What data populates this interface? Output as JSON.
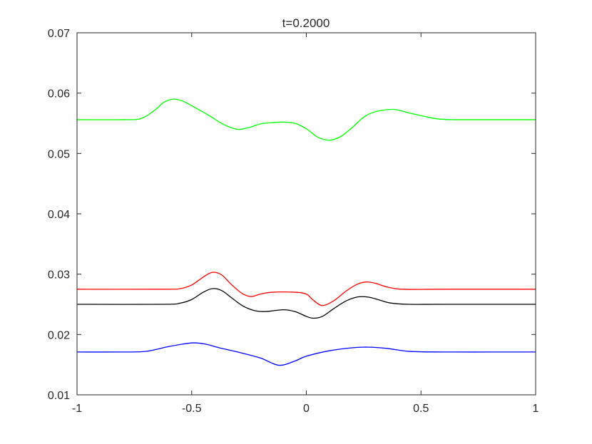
{
  "chart_data": {
    "type": "line",
    "title": "t=0.2000",
    "xlabel": "",
    "ylabel": "",
    "xlim": [
      -1,
      1
    ],
    "ylim": [
      0.01,
      0.07
    ],
    "x_ticks": [
      "-1",
      "-0.5",
      "0",
      "0.5",
      "1"
    ],
    "y_ticks": [
      "0.01",
      "0.02",
      "0.03",
      "0.04",
      "0.05",
      "0.06",
      "0.07"
    ],
    "grid": false,
    "series": [
      {
        "color": "#00ff00",
        "x": [
          -1,
          -0.8,
          -0.72,
          -0.66,
          -0.62,
          -0.58,
          -0.54,
          -0.48,
          -0.42,
          -0.36,
          -0.3,
          -0.25,
          -0.2,
          -0.15,
          -0.1,
          -0.05,
          0,
          0.05,
          0.1,
          0.15,
          0.2,
          0.25,
          0.3,
          0.38,
          0.45,
          0.52,
          0.58,
          0.65,
          0.8,
          1
        ],
        "y": [
          0.0556,
          0.0556,
          0.0558,
          0.0572,
          0.0585,
          0.059,
          0.0587,
          0.0575,
          0.0562,
          0.0548,
          0.054,
          0.0543,
          0.0549,
          0.0551,
          0.0552,
          0.055,
          0.0541,
          0.0527,
          0.0522,
          0.0528,
          0.0543,
          0.056,
          0.0569,
          0.0573,
          0.0567,
          0.0561,
          0.0557,
          0.0556,
          0.0556,
          0.0556
        ]
      },
      {
        "color": "#ff0000",
        "x": [
          -1,
          -0.62,
          -0.55,
          -0.5,
          -0.45,
          -0.41,
          -0.37,
          -0.33,
          -0.28,
          -0.24,
          -0.2,
          -0.15,
          -0.05,
          0,
          0.03,
          0.07,
          0.12,
          0.17,
          0.22,
          0.26,
          0.3,
          0.35,
          0.42,
          0.6,
          1
        ],
        "y": [
          0.0275,
          0.0275,
          0.0276,
          0.0282,
          0.0295,
          0.0303,
          0.0299,
          0.0284,
          0.0268,
          0.0263,
          0.0267,
          0.027,
          0.027,
          0.0267,
          0.0257,
          0.0248,
          0.0256,
          0.0271,
          0.0283,
          0.0287,
          0.0285,
          0.0279,
          0.0275,
          0.0275,
          0.0275
        ]
      },
      {
        "color": "#000000",
        "x": [
          -1,
          -0.62,
          -0.55,
          -0.5,
          -0.45,
          -0.41,
          -0.37,
          -0.33,
          -0.28,
          -0.23,
          -0.18,
          -0.1,
          -0.05,
          0,
          0.03,
          0.07,
          0.12,
          0.17,
          0.22,
          0.27,
          0.32,
          0.37,
          0.45,
          0.6,
          1
        ],
        "y": [
          0.025,
          0.025,
          0.0252,
          0.0258,
          0.027,
          0.0276,
          0.0273,
          0.0262,
          0.0248,
          0.024,
          0.0238,
          0.0241,
          0.0238,
          0.023,
          0.0227,
          0.023,
          0.0243,
          0.0255,
          0.0262,
          0.0262,
          0.0257,
          0.0252,
          0.025,
          0.025,
          0.025
        ]
      },
      {
        "color": "#0000ff",
        "x": [
          -1,
          -0.8,
          -0.7,
          -0.6,
          -0.5,
          -0.44,
          -0.38,
          -0.3,
          -0.2,
          -0.12,
          -0.05,
          0,
          0.1,
          0.2,
          0.27,
          0.35,
          0.45,
          0.6,
          0.8,
          1
        ],
        "y": [
          0.0171,
          0.0171,
          0.0172,
          0.018,
          0.0186,
          0.0184,
          0.0178,
          0.0171,
          0.0161,
          0.0149,
          0.0156,
          0.0164,
          0.0173,
          0.0178,
          0.0179,
          0.0177,
          0.0172,
          0.0171,
          0.0171,
          0.0171
        ]
      }
    ]
  }
}
